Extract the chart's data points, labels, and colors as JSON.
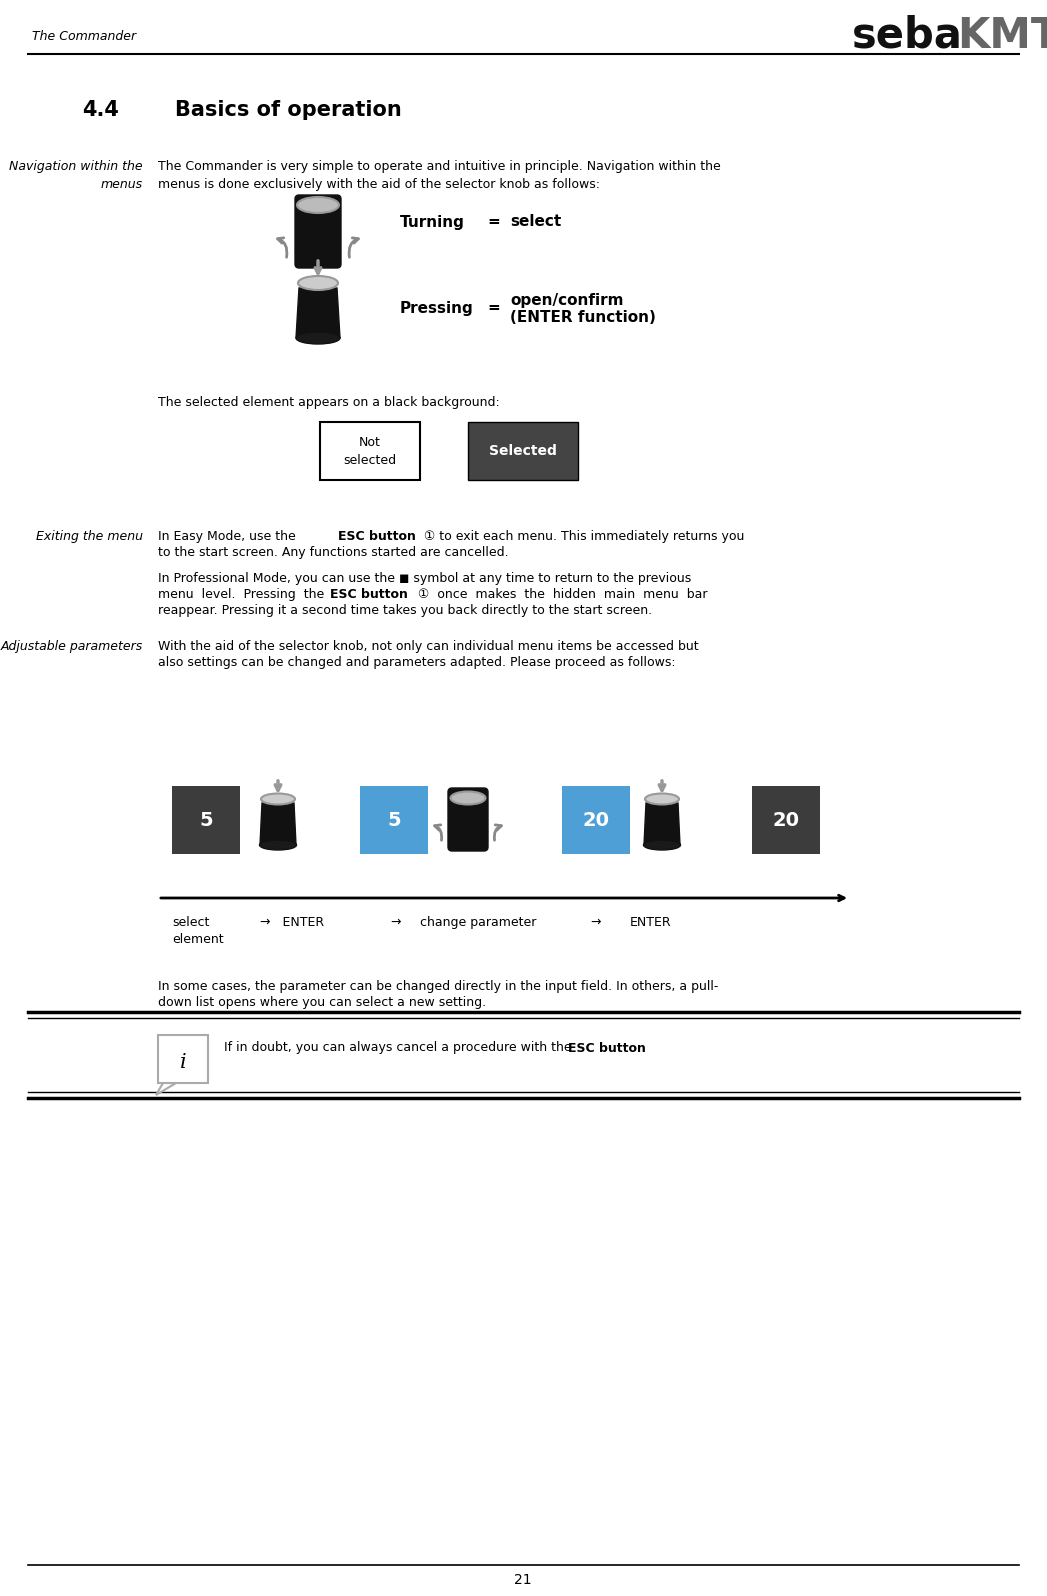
{
  "title_left": "The Commander",
  "logo_seba": "seba",
  "logo_kmt": "KMT",
  "section_number": "4.4",
  "section_title": "Basics of operation",
  "sidebar_nav1": "Navigation within the",
  "sidebar_nav2": "menus",
  "sidebar_exit": "Exiting the menu",
  "sidebar_adj": "Adjustable parameters",
  "body_text1a": "The Commander is very simple to operate and intuitive in principle. Navigation within the",
  "body_text1b": "menus is done exclusively with the aid of the selector knob as follows:",
  "turning_label": "Turning",
  "eq": "=",
  "select_label": "select",
  "pressing_label": "Pressing",
  "open_confirm": "open/confirm",
  "enter_func": "(ENTER function)",
  "selected_text": "The selected element appears on a black background:",
  "not_selected_label": "Not\nselected",
  "selected_label": "Selected",
  "exit_text1a": "In Easy Mode, use the ",
  "exit_text1b": "ESC button",
  "exit_text1c": " ① to exit each menu. This immediately returns you",
  "exit_text1d": "to the start screen. Any functions started are cancelled.",
  "exit_text2a": "In Professional Mode, you can use the ◼ symbol at any time to return to the previous",
  "exit_text2b": "menu  level.  Pressing  the  ",
  "exit_text2c": "ESC button",
  "exit_text2d": "  ①  once  makes  the  hidden  main  menu  bar",
  "exit_text2e": "reappear. Pressing it a second time takes you back directly to the start screen.",
  "adj_text1": "With the aid of the selector knob, not only can individual menu items be accessed but",
  "adj_text2": "also settings can be changed and parameters adapted. Please proceed as follows:",
  "box_values": [
    "5",
    "5",
    "20",
    "20"
  ],
  "box_colors": [
    "#3c3c3c",
    "#4d9fd6",
    "#4d9fd6",
    "#3c3c3c"
  ],
  "flow_label_select": "select\nelement",
  "flow_label_enter1": "→   ENTER",
  "flow_arrow1": "→",
  "flow_label_change": "change parameter",
  "flow_arrow2": "→",
  "flow_label_enter2": "ENTER",
  "param_text1": "In some cases, the parameter can be changed directly in the input field. In others, a pull-",
  "param_text2": "down list opens where you can select a new setting.",
  "note_text1": "If in doubt, you can always cancel a procedure with the ",
  "note_text2": "ESC button",
  "note_text3": ".",
  "page_number": "21",
  "bg_color": "#ffffff",
  "text_color": "#000000",
  "selected_bg": "#444444",
  "line_color": "#000000"
}
